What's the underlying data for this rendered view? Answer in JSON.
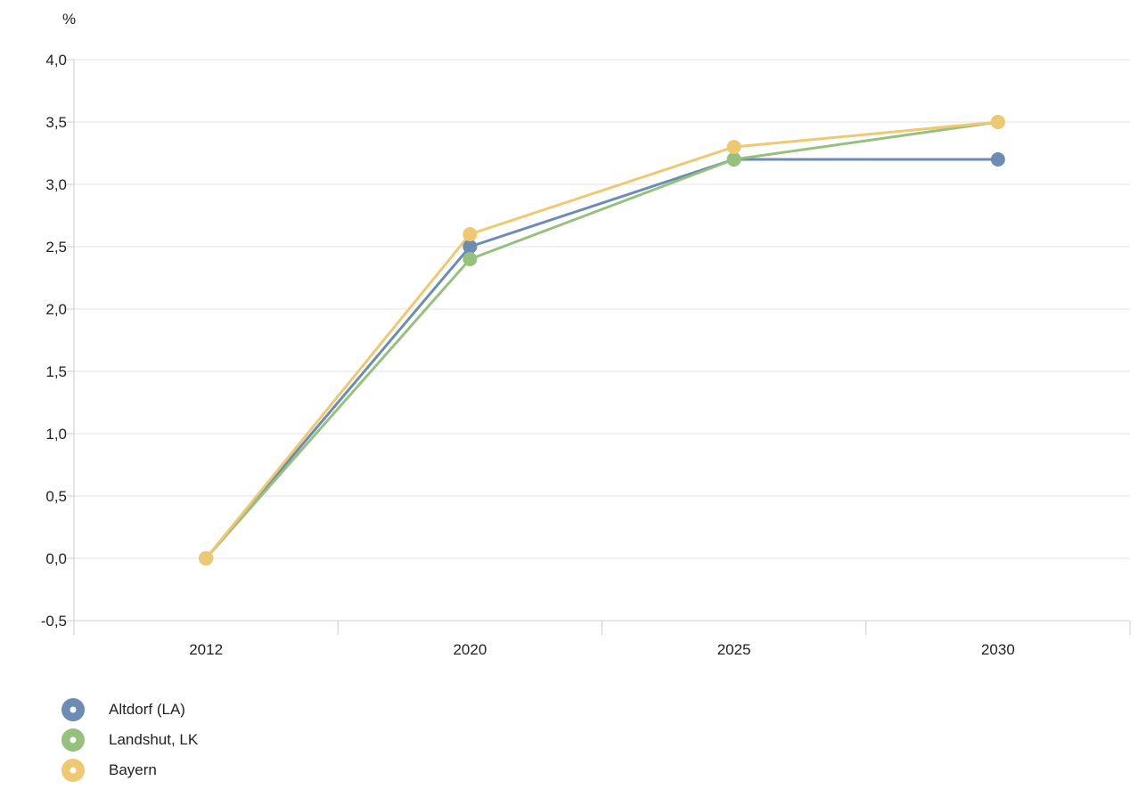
{
  "chart_data": {
    "type": "line",
    "unit_label": "%",
    "x_categories": [
      "2012",
      "2020",
      "2025",
      "2030"
    ],
    "y_ticks": [
      {
        "value": -0.5,
        "label": "-0,5"
      },
      {
        "value": 0.0,
        "label": "0,0"
      },
      {
        "value": 0.5,
        "label": "0,5"
      },
      {
        "value": 1.0,
        "label": "1,0"
      },
      {
        "value": 1.5,
        "label": "1,5"
      },
      {
        "value": 2.0,
        "label": "2,0"
      },
      {
        "value": 2.5,
        "label": "2,5"
      },
      {
        "value": 3.0,
        "label": "3,0"
      },
      {
        "value": 3.5,
        "label": "3,5"
      },
      {
        "value": 4.0,
        "label": "4,0"
      }
    ],
    "ylim": [
      -0.5,
      4.0
    ],
    "grid": true,
    "legend_position": "bottom-left",
    "series": [
      {
        "name": "Altdorf (LA)",
        "color": "#6b8db5",
        "values": [
          0.0,
          2.5,
          3.2,
          3.2
        ]
      },
      {
        "name": "Landshut, LK",
        "color": "#96c17d",
        "values": [
          0.0,
          2.4,
          3.2,
          3.5
        ]
      },
      {
        "name": "Bayern",
        "color": "#efc872",
        "values": [
          0.0,
          2.6,
          3.3,
          3.5
        ]
      }
    ]
  }
}
